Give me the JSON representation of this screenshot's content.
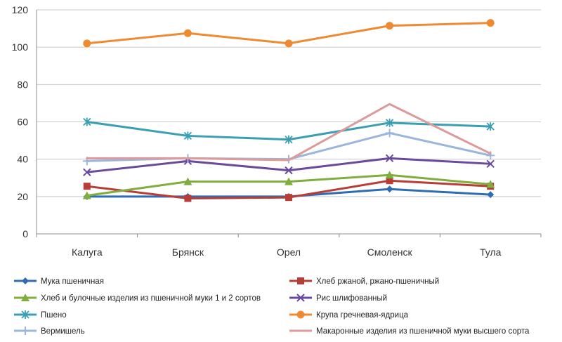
{
  "chart_data": {
    "type": "line",
    "categories": [
      "Калуга",
      "Брянск",
      "Орел",
      "Смоленск",
      "Тула"
    ],
    "ylim": [
      0,
      120
    ],
    "yticks": [
      0,
      20,
      40,
      60,
      80,
      100,
      120
    ],
    "grid": true,
    "legend_position": "bottom",
    "series": [
      {
        "name": "Мука пшеничная",
        "color": "#2e6db4",
        "marker": "diamond",
        "values": [
          20,
          20,
          20,
          24,
          21
        ]
      },
      {
        "name": "Хлеб ржаной, ржано-пшеничный",
        "color": "#b83c37",
        "marker": "square",
        "values": [
          25.5,
          19,
          19.5,
          28.5,
          25.5
        ]
      },
      {
        "name": "Хлеб и булочные изделия из пшеничной муки 1 и 2 сортов",
        "color": "#7fae3d",
        "marker": "triangle",
        "values": [
          20.5,
          28,
          28,
          31.5,
          26.5
        ]
      },
      {
        "name": "Рис шлифованный",
        "color": "#6a4a9c",
        "marker": "x",
        "values": [
          33,
          39,
          34,
          40.5,
          37.5
        ]
      },
      {
        "name": "Пшено",
        "color": "#3a9fb3",
        "marker": "asterisk",
        "values": [
          60,
          52.5,
          50.5,
          59.5,
          57.5
        ]
      },
      {
        "name": "Крупа гречневая-ядрица",
        "color": "#ee8a32",
        "marker": "circle",
        "values": [
          102,
          107.5,
          102,
          111.5,
          113
        ]
      },
      {
        "name": "Вермишель",
        "color": "#9cb5dc",
        "marker": "plus",
        "values": [
          39,
          40.5,
          40,
          54,
          42
        ]
      },
      {
        "name": "Макаронные изделия из пшеничной муки высшего сорта",
        "color": "#dc9a9a",
        "marker": "none",
        "values": [
          40.5,
          40.5,
          39.5,
          69.5,
          43
        ]
      }
    ]
  }
}
